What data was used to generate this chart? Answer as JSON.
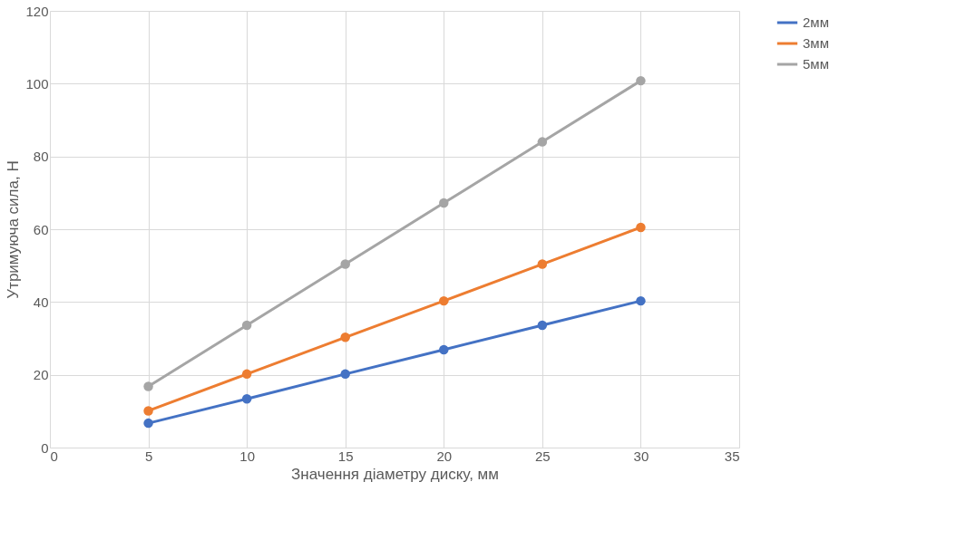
{
  "chart_data": {
    "type": "line",
    "xlabel": "Значення діаметру диску, мм",
    "ylabel": "Утримуюча сила, Н",
    "x": [
      5,
      10,
      15,
      20,
      25,
      30
    ],
    "series": [
      {
        "name": "2мм",
        "color": "#4472c4",
        "values": [
          6.7,
          13.4,
          20.2,
          26.9,
          33.6,
          40.3
        ]
      },
      {
        "name": "3мм",
        "color": "#ed7d31",
        "values": [
          10.1,
          20.2,
          30.3,
          40.3,
          50.4,
          60.5
        ]
      },
      {
        "name": "5мм",
        "color": "#a5a5a5",
        "values": [
          16.8,
          33.6,
          50.4,
          67.2,
          84.0,
          100.8
        ]
      }
    ],
    "xlim": [
      0,
      35
    ],
    "xticks": [
      0,
      5,
      10,
      15,
      20,
      25,
      30,
      35
    ],
    "ylim": [
      0,
      120
    ],
    "yticks": [
      0,
      20,
      40,
      60,
      80,
      100,
      120
    ],
    "grid": true,
    "legend": "right",
    "marker": "circle",
    "line_style": "solid"
  }
}
